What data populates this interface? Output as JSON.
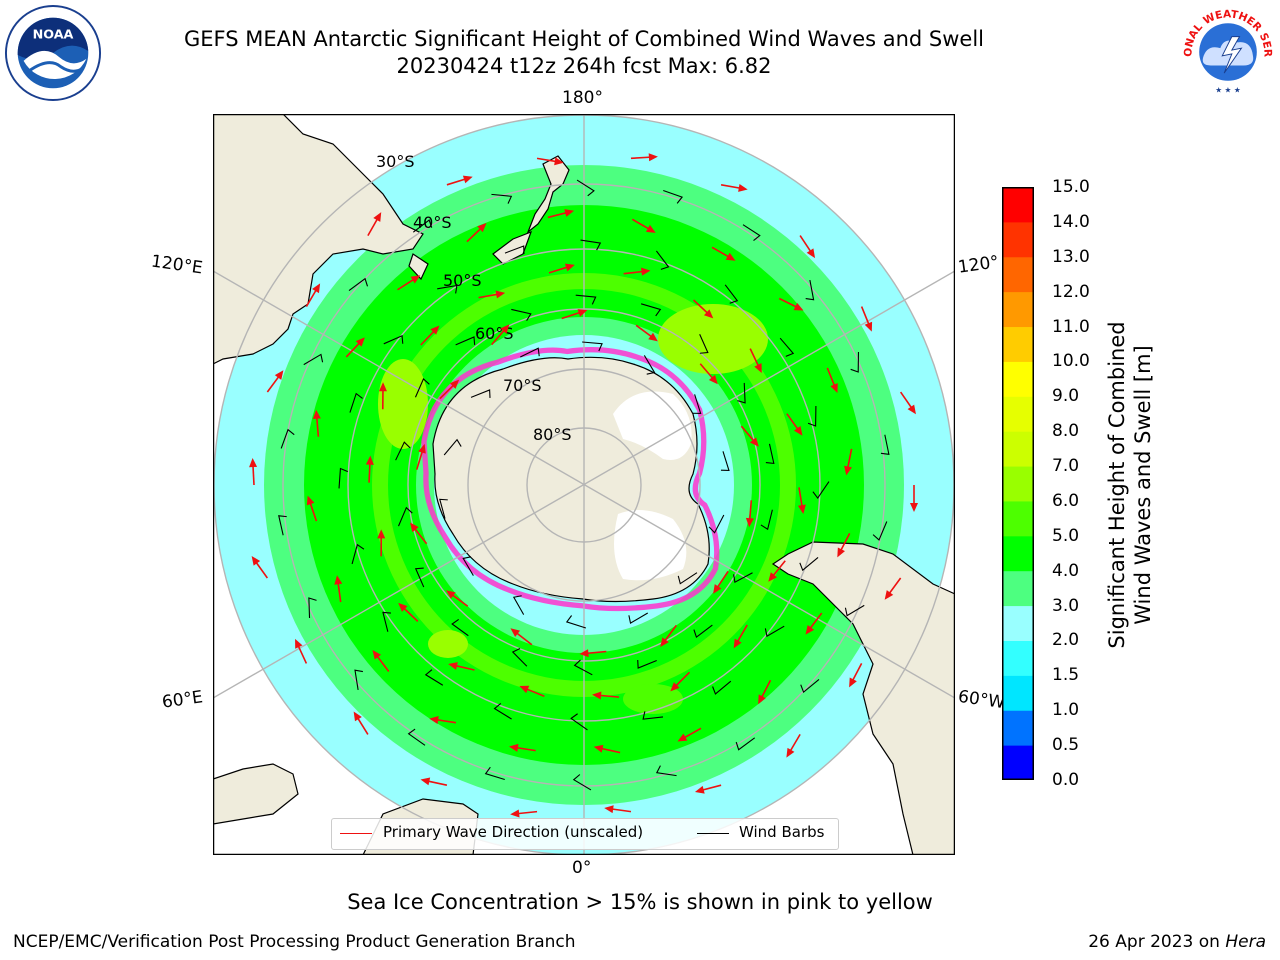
{
  "title": {
    "line1": "GEFS MEAN Antarctic Significant Height of Combined Wind Waves and Swell",
    "line2": "20230424 t12z 264h fcst   Max: 6.82"
  },
  "map": {
    "projection": "south-polar-stereographic",
    "lon_labels": {
      "top": "180°",
      "bottom": "0°",
      "left_upper": "120°E",
      "left_lower": "60°E",
      "right_upper": "120°",
      "right_lower": "60°W"
    },
    "lat_labels": [
      "30°S",
      "40°S",
      "50°S",
      "60°S",
      "70°S",
      "80°S"
    ],
    "colors": {
      "land": "#efecdc",
      "ice_shelf": "#ffffff",
      "grid": "#b5b5b5",
      "coast": "#000000",
      "sea_ice": "#ff33cc",
      "wave_arrow": "#ee1111"
    }
  },
  "legend": {
    "primary_wave": "Primary Wave Direction (unscaled)",
    "wind_barbs": "Wind Barbs"
  },
  "colorbar": {
    "title_line1": "Significant Height of Combined",
    "title_line2": "Wind Waves and Swell [m]",
    "ticks": [
      "0.0",
      "0.5",
      "1.0",
      "1.5",
      "2.0",
      "3.0",
      "4.0",
      "5.0",
      "6.0",
      "7.0",
      "8.0",
      "9.0",
      "10.0",
      "11.0",
      "12.0",
      "13.0",
      "14.0",
      "15.0"
    ],
    "colors": [
      "#0000ff",
      "#0073ff",
      "#00e6ff",
      "#33ffff",
      "#99ffff",
      "#4dff80",
      "#00ff00",
      "#4dff00",
      "#99ff00",
      "#ccff00",
      "#e6ff00",
      "#ffff00",
      "#ffcc00",
      "#ff9900",
      "#ff6600",
      "#ff3300",
      "#ff0000"
    ]
  },
  "note": "Sea Ice Concentration > 15% is shown in pink to yellow",
  "footer": {
    "left": "NCEP/EMC/Verification Post Processing Product Generation Branch",
    "right_prefix": "26 Apr 2023 on ",
    "right_machine": "Hera"
  },
  "logos": {
    "noaa": "NOAA",
    "nws": "NATIONAL WEATHER SERVICE"
  }
}
